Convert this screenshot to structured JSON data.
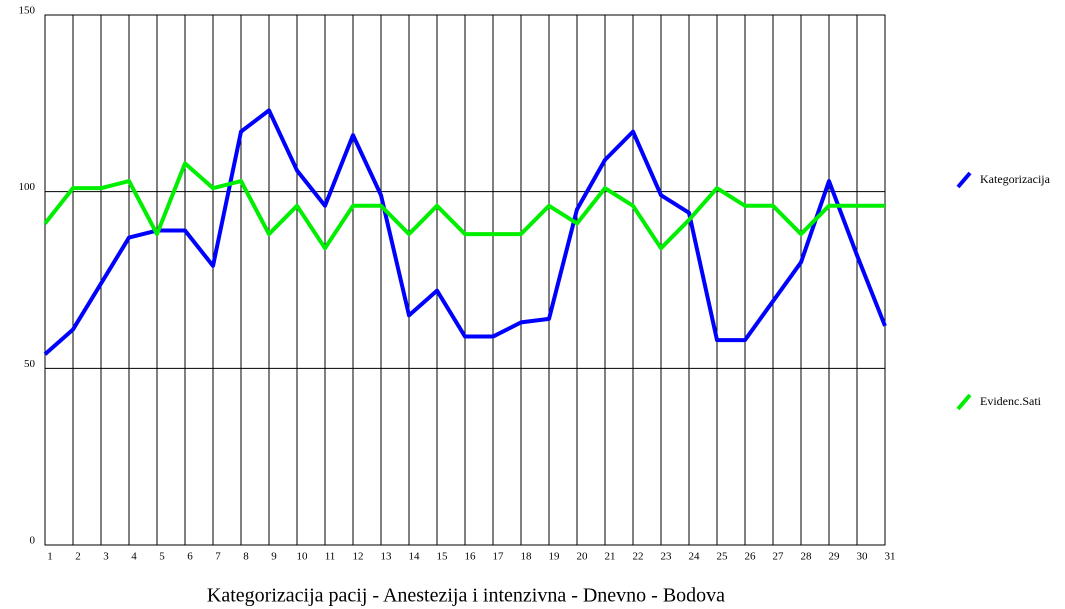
{
  "chart_data": {
    "type": "line",
    "title": "Kategorizacija pacij - Anestezija i intenzivna - Dnevno - Bodova",
    "categories": [
      "1",
      "2",
      "3",
      "4",
      "5",
      "6",
      "7",
      "8",
      "9",
      "10",
      "11",
      "12",
      "13",
      "14",
      "15",
      "16",
      "17",
      "18",
      "19",
      "20",
      "21",
      "22",
      "23",
      "24",
      "25",
      "26",
      "27",
      "28",
      "29",
      "30",
      "31"
    ],
    "series": [
      {
        "name": "Kategorizacija",
        "color": "#0000ff",
        "values": [
          54,
          61,
          74,
          87,
          89,
          89,
          79,
          117,
          123,
          106,
          96,
          116,
          99,
          65,
          72,
          59,
          59,
          63,
          64,
          95,
          109,
          117,
          99,
          94,
          58,
          58,
          69,
          80,
          103,
          82,
          62
        ]
      },
      {
        "name": "Evidenc.Sati",
        "color": "#00ee00",
        "values": [
          91,
          101,
          101,
          103,
          88,
          108,
          101,
          103,
          88,
          96,
          84,
          96,
          96,
          88,
          96,
          88,
          88,
          88,
          96,
          91,
          101,
          96,
          84,
          92,
          101,
          96,
          96,
          88,
          96,
          96,
          96
        ]
      }
    ],
    "ylim": [
      0,
      150
    ],
    "yticks": [
      0,
      50,
      100,
      150
    ],
    "grid": true
  }
}
